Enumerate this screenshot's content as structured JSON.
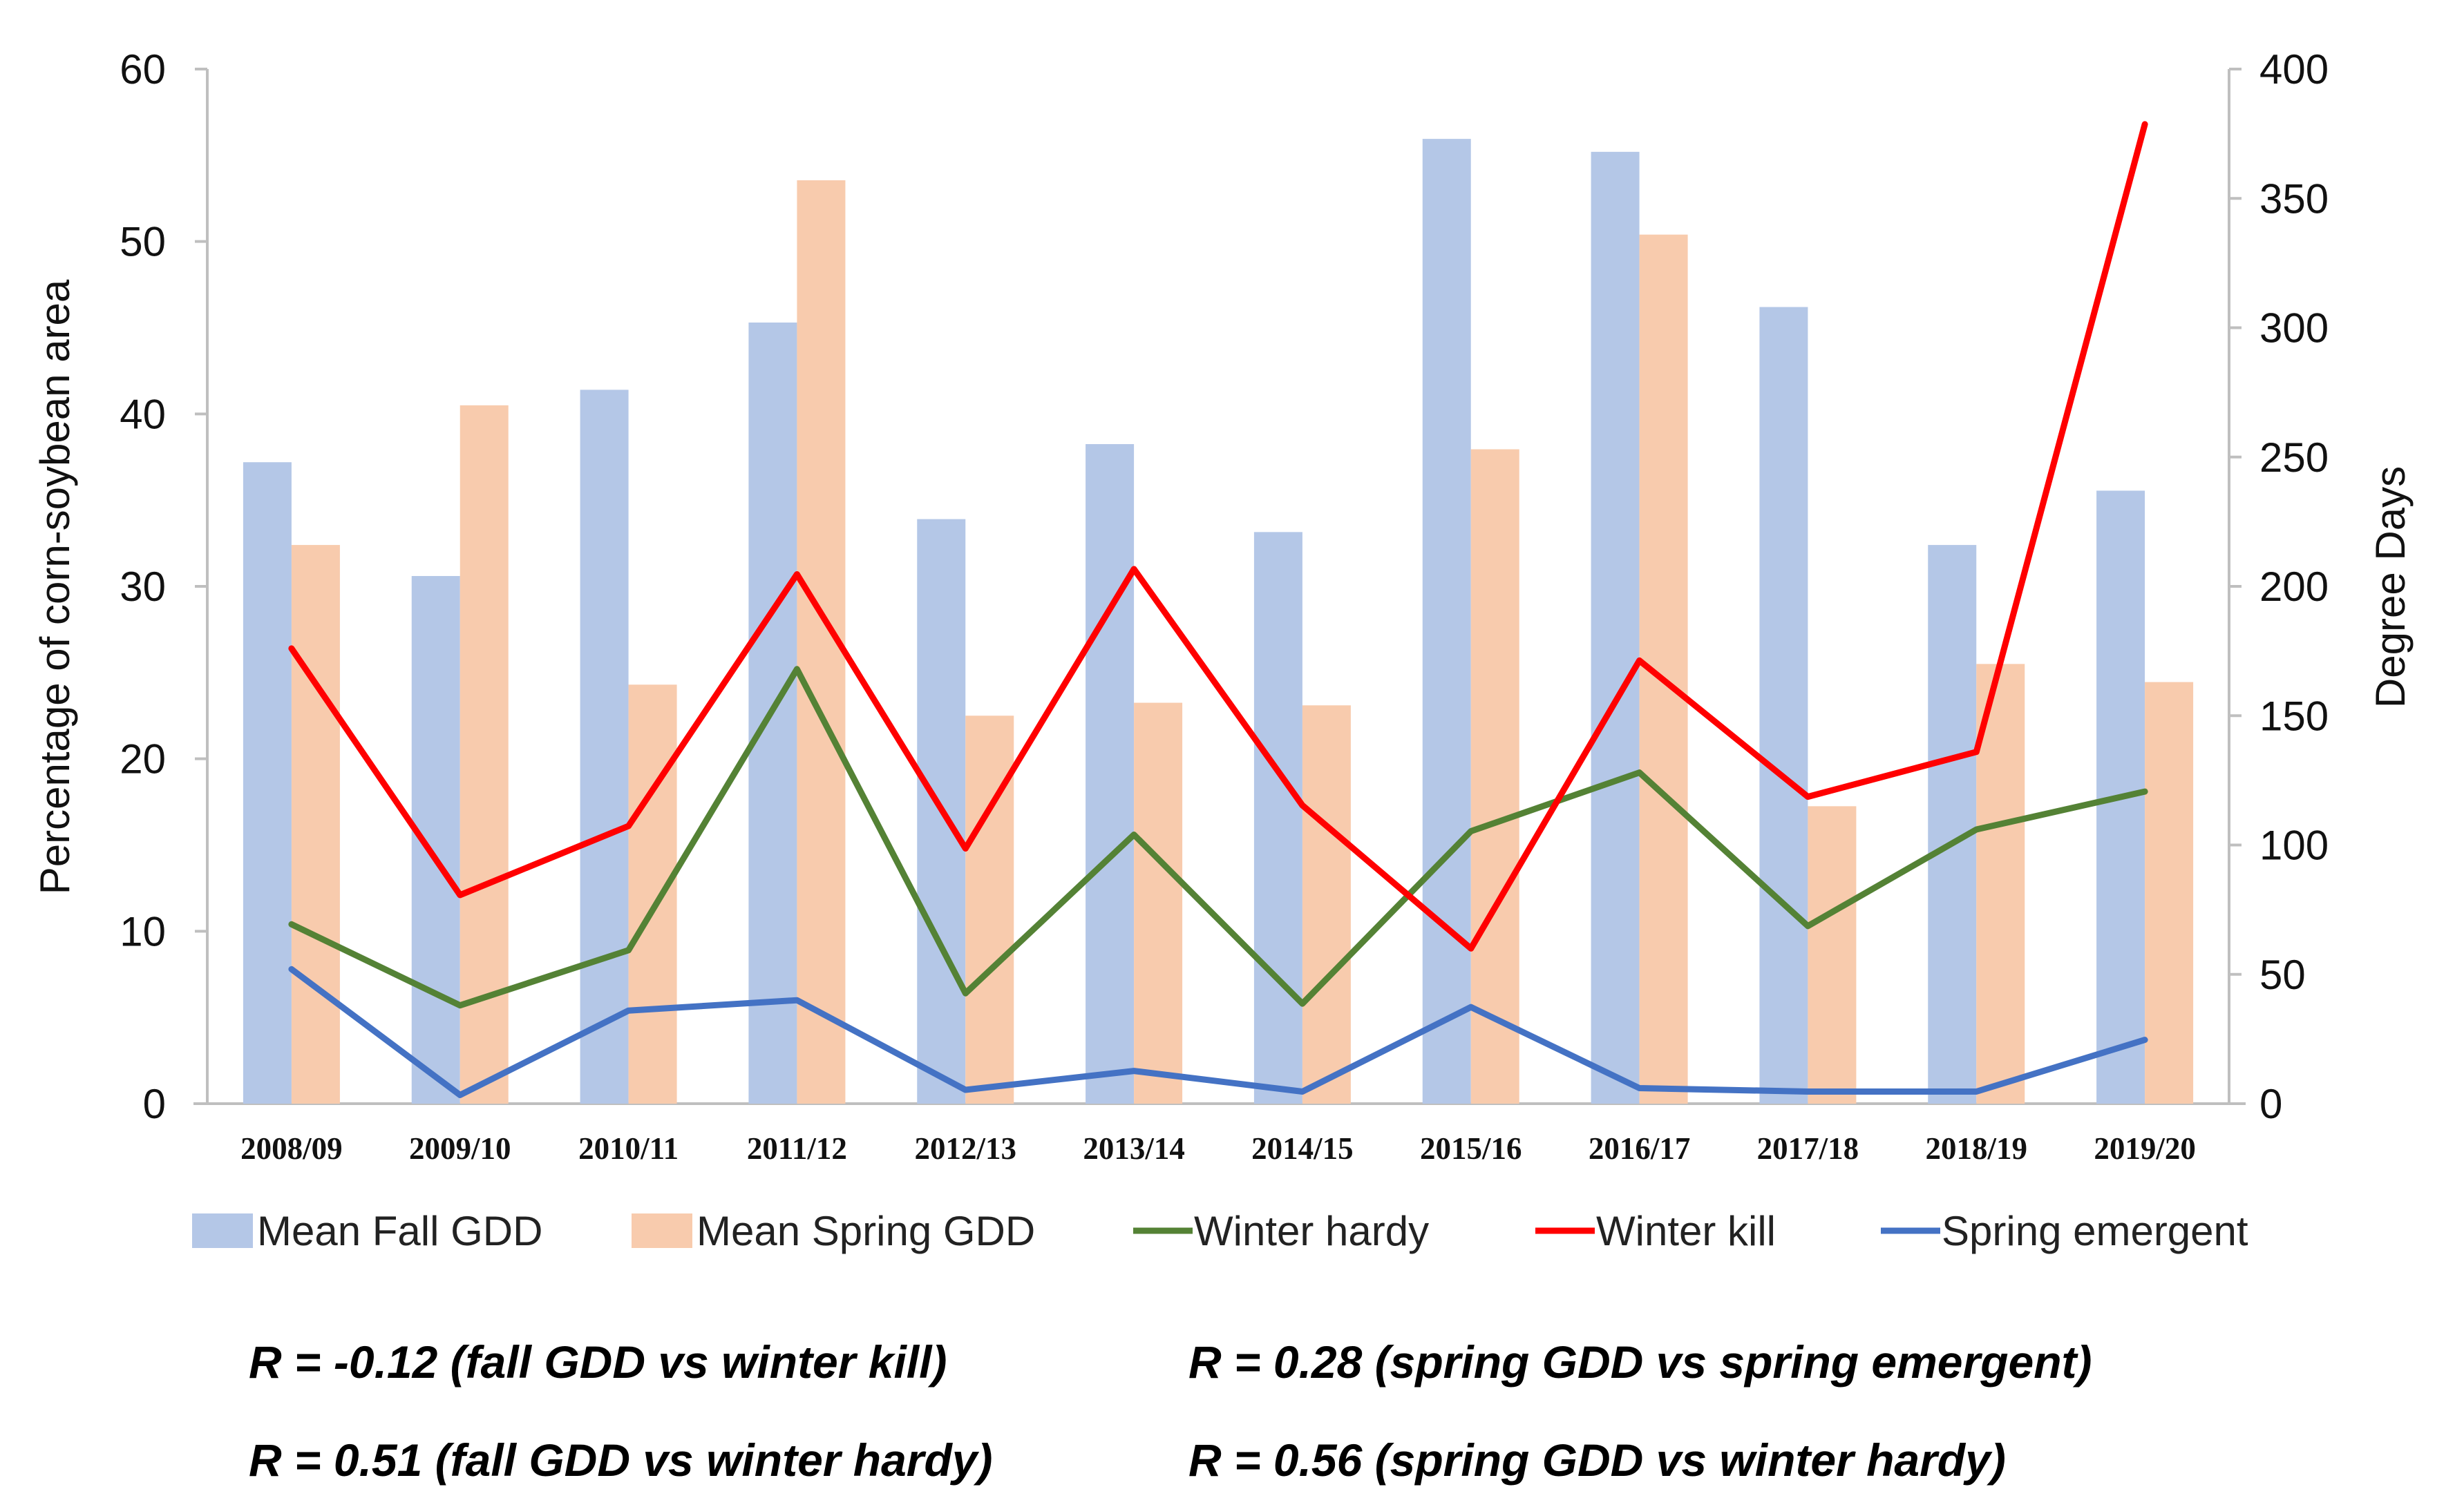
{
  "chart_data": {
    "type": "bar+line",
    "categories": [
      "2008/09",
      "2009/10",
      "2010/11",
      "2011/12",
      "2012/13",
      "2013/14",
      "2014/15",
      "2015/16",
      "2016/17",
      "2017/18",
      "2018/19",
      "2019/20"
    ],
    "left_axis": {
      "label": "Percentage of corn-soybean area",
      "ylim": [
        0,
        60
      ],
      "ticks": [
        0,
        10,
        20,
        30,
        40,
        50,
        60
      ]
    },
    "right_axis": {
      "label": "Degree Days",
      "ylim": [
        0,
        400
      ],
      "ticks": [
        0,
        50,
        100,
        150,
        200,
        250,
        300,
        350,
        400
      ]
    },
    "bar_series": [
      {
        "name": "Mean Fall GDD",
        "axis": "right",
        "color": "#b4c7e7",
        "values": [
          248,
          204,
          276,
          302,
          226,
          255,
          221,
          373,
          368,
          308,
          216,
          237
        ]
      },
      {
        "name": "Mean Spring GDD",
        "axis": "right",
        "color": "#f8cbad",
        "values": [
          216,
          270,
          162,
          357,
          150,
          155,
          154,
          253,
          336,
          115,
          170,
          163
        ]
      }
    ],
    "line_series": [
      {
        "name": "Winter hardy",
        "axis": "left",
        "color": "#548235",
        "values": [
          10.4,
          5.7,
          8.9,
          25.2,
          6.4,
          15.6,
          5.8,
          15.8,
          19.2,
          10.3,
          15.9,
          18.1
        ]
      },
      {
        "name": "Winter kill",
        "axis": "left",
        "color": "#ff0000",
        "values": [
          26.4,
          12.1,
          16.1,
          30.7,
          14.8,
          31.0,
          17.3,
          9.0,
          25.7,
          17.8,
          20.4,
          56.8
        ]
      },
      {
        "name": "Spring emergent",
        "axis": "left",
        "color": "#4472c4",
        "values": [
          7.8,
          0.5,
          5.4,
          6.0,
          0.8,
          1.9,
          0.7,
          5.6,
          0.9,
          0.7,
          0.7,
          3.7
        ]
      }
    ],
    "legend_order": [
      "Mean Fall GDD",
      "Mean Spring GDD",
      "Winter hardy",
      "Winter kill",
      "Spring emergent"
    ],
    "legend_placement": "bottom",
    "grid": false,
    "annotations": [
      "R = -0.12 (fall GDD vs winter kill)",
      "R = 0.28 (spring GDD vs spring emergent)",
      "R = 0.51 (fall GDD vs winter hardy)",
      "R = 0.56 (spring GDD vs winter hardy)"
    ]
  }
}
